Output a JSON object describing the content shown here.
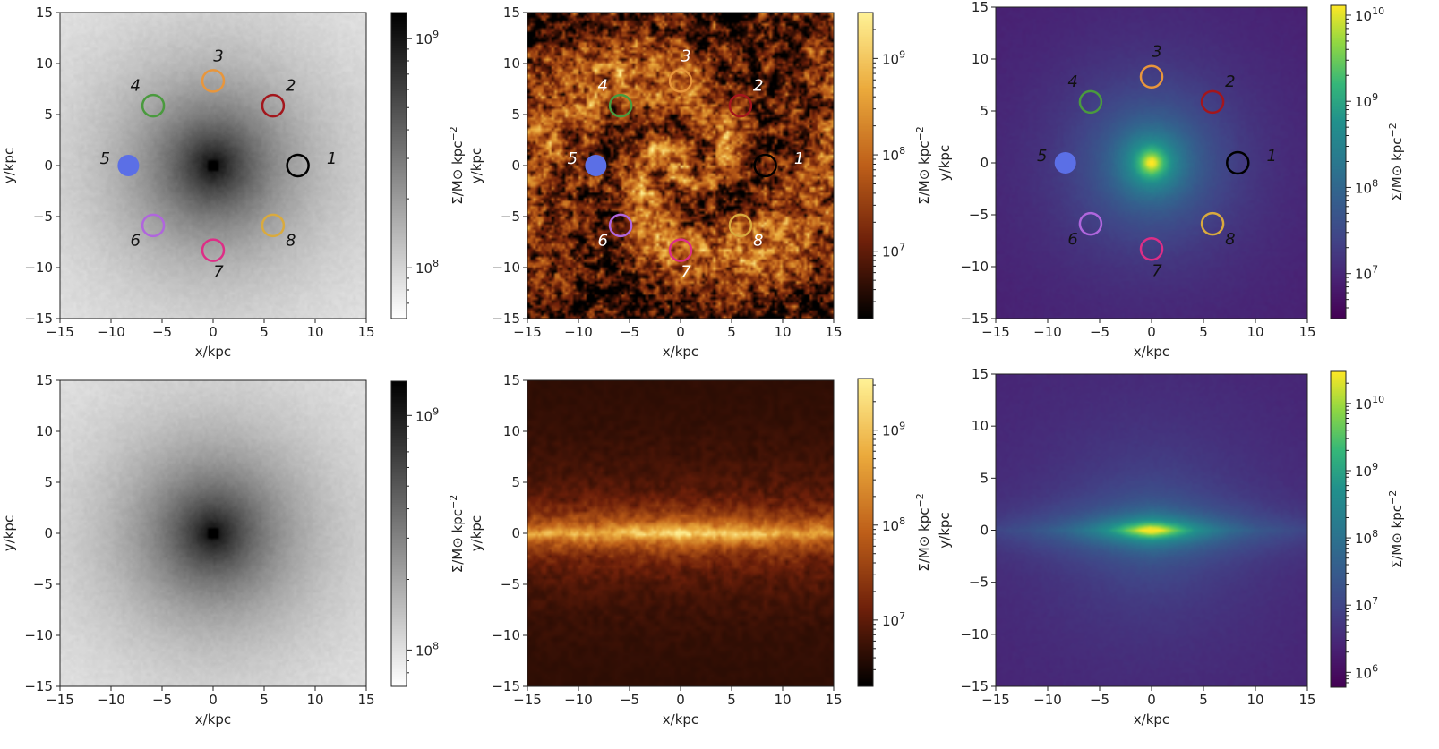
{
  "colors": {
    "dm_colormap": "grey",
    "gas_colormap": "afmhot",
    "star_colormap": "viridis",
    "marker_1": "#000000",
    "marker_2": "#a3161c",
    "marker_3": "#e8963c",
    "marker_4": "#4a9a3e",
    "marker_5": "#5b6fe6",
    "marker_6": "#b066dd",
    "marker_7": "#dd2e86",
    "marker_8": "#d9aa3e"
  },
  "chart_data": [
    {
      "type": "heatmap",
      "id": "dm-face-on",
      "colormap": "grey",
      "x": {
        "label": "x/kpc",
        "lim": [
          -15,
          15
        ],
        "ticks": [
          "−15",
          "−10",
          "−5",
          "0",
          "5",
          "10",
          "15"
        ]
      },
      "y": {
        "label": "y/kpc",
        "lim": [
          -15,
          15
        ],
        "ticks": [
          "−15",
          "−10",
          "−5",
          "0",
          "5",
          "10",
          "15"
        ]
      },
      "colorbar": {
        "label": "Σ/M⊙ kpc⁻²",
        "scale": "log",
        "range": [
          60000000,
          1300000000
        ],
        "ticks": [
          {
            "v": 100000000,
            "base": "10",
            "exp": "8"
          },
          {
            "v": 1000000000,
            "base": "10",
            "exp": "9"
          }
        ]
      },
      "field": {
        "center": [
          0,
          0
        ],
        "scale_kpc": 7,
        "edge_flatten": 0.35,
        "seed": 11
      },
      "markers": [
        {
          "label": "1",
          "x": 8.3,
          "y": 0.0,
          "color": "#000000",
          "filled": false
        },
        {
          "label": "2",
          "x": 5.87,
          "y": 5.87,
          "color": "#a3161c",
          "filled": false
        },
        {
          "label": "3",
          "x": 0.0,
          "y": 8.3,
          "color": "#e8963c",
          "filled": false
        },
        {
          "label": "4",
          "x": -5.87,
          "y": 5.87,
          "color": "#4a9a3e",
          "filled": false
        },
        {
          "label": "5",
          "x": -8.3,
          "y": 0.0,
          "color": "#5b6fe6",
          "filled": true
        },
        {
          "label": "6",
          "x": -5.87,
          "y": -5.87,
          "color": "#b066dd",
          "filled": false
        },
        {
          "label": "7",
          "x": 0.0,
          "y": -8.3,
          "color": "#dd2e86",
          "filled": false
        },
        {
          "label": "8",
          "x": 5.87,
          "y": -5.87,
          "color": "#d9aa3e",
          "filled": false
        }
      ],
      "marker_label_color": "#111111"
    },
    {
      "type": "heatmap",
      "id": "gas-face-on",
      "colormap": "afmhot",
      "x": {
        "label": "x/kpc",
        "lim": [
          -15,
          15
        ],
        "ticks": [
          "−15",
          "−10",
          "−5",
          "0",
          "5",
          "10",
          "15"
        ]
      },
      "y": {
        "label": "y/kpc",
        "lim": [
          -15,
          15
        ],
        "ticks": [
          "−15",
          "−10",
          "−5",
          "0",
          "5",
          "10",
          "15"
        ]
      },
      "colorbar": {
        "label": "Σ/M⊙ kpc⁻²",
        "scale": "log",
        "range": [
          2000000,
          3000000000
        ],
        "ticks": [
          {
            "v": 10000000,
            "base": "10",
            "exp": "7"
          },
          {
            "v": 100000000,
            "base": "10",
            "exp": "8"
          },
          {
            "v": 1000000000,
            "base": "10",
            "exp": "9"
          }
        ]
      },
      "field": {
        "center": [
          0,
          0
        ],
        "spiral": true,
        "seed": 23
      },
      "markers": [
        {
          "label": "1",
          "x": 8.3,
          "y": 0.0,
          "color": "#000000",
          "filled": false
        },
        {
          "label": "2",
          "x": 5.87,
          "y": 5.87,
          "color": "#a3161c",
          "filled": false
        },
        {
          "label": "3",
          "x": 0.0,
          "y": 8.3,
          "color": "#e8963c",
          "filled": false
        },
        {
          "label": "4",
          "x": -5.87,
          "y": 5.87,
          "color": "#4a9a3e",
          "filled": false
        },
        {
          "label": "5",
          "x": -8.3,
          "y": 0.0,
          "color": "#5b6fe6",
          "filled": true
        },
        {
          "label": "6",
          "x": -5.87,
          "y": -5.87,
          "color": "#b066dd",
          "filled": false
        },
        {
          "label": "7",
          "x": 0.0,
          "y": -8.3,
          "color": "#dd2e86",
          "filled": false
        },
        {
          "label": "8",
          "x": 5.87,
          "y": -5.87,
          "color": "#d9aa3e",
          "filled": false
        }
      ],
      "marker_label_color": "#ffffff"
    },
    {
      "type": "heatmap",
      "id": "stars-face-on",
      "colormap": "viridis",
      "x": {
        "label": "x/kpc",
        "lim": [
          -15,
          15
        ],
        "ticks": [
          "−15",
          "−10",
          "−5",
          "0",
          "5",
          "10",
          "15"
        ]
      },
      "y": {
        "label": "y/kpc",
        "lim": [
          -15,
          15
        ],
        "ticks": [
          "−15",
          "−10",
          "−5",
          "0",
          "5",
          "10",
          "15"
        ]
      },
      "colorbar": {
        "label": "Σ/M⊙ kpc⁻²",
        "scale": "log",
        "range": [
          3000000,
          13000000000
        ],
        "ticks": [
          {
            "v": 10000000,
            "base": "10",
            "exp": "7"
          },
          {
            "v": 100000000,
            "base": "10",
            "exp": "8"
          },
          {
            "v": 1000000000,
            "base": "10",
            "exp": "9"
          },
          {
            "v": 10000000000,
            "base": "10",
            "exp": "10"
          }
        ]
      },
      "field": {
        "center": [
          0,
          0
        ],
        "scale_kpc": 4,
        "seed": 37
      },
      "markers": [
        {
          "label": "1",
          "x": 8.3,
          "y": 0.0,
          "color": "#000000",
          "filled": false
        },
        {
          "label": "2",
          "x": 5.87,
          "y": 5.87,
          "color": "#a3161c",
          "filled": false
        },
        {
          "label": "3",
          "x": 0.0,
          "y": 8.3,
          "color": "#e8963c",
          "filled": false
        },
        {
          "label": "4",
          "x": -5.87,
          "y": 5.87,
          "color": "#4a9a3e",
          "filled": false
        },
        {
          "label": "5",
          "x": -8.3,
          "y": 0.0,
          "color": "#5b6fe6",
          "filled": true
        },
        {
          "label": "6",
          "x": -5.87,
          "y": -5.87,
          "color": "#b066dd",
          "filled": false
        },
        {
          "label": "7",
          "x": 0.0,
          "y": -8.3,
          "color": "#dd2e86",
          "filled": false
        },
        {
          "label": "8",
          "x": 5.87,
          "y": -5.87,
          "color": "#d9aa3e",
          "filled": false
        }
      ],
      "marker_label_color": "#111111"
    },
    {
      "type": "heatmap",
      "id": "dm-edge-on",
      "colormap": "grey",
      "x": {
        "label": "x/kpc",
        "lim": [
          -15,
          15
        ],
        "ticks": [
          "−15",
          "−10",
          "−5",
          "0",
          "5",
          "10",
          "15"
        ]
      },
      "y": {
        "label": "y/kpc",
        "lim": [
          -15,
          15
        ],
        "ticks": [
          "−15",
          "−10",
          "−5",
          "0",
          "5",
          "10",
          "15"
        ]
      },
      "colorbar": {
        "label": "Σ/M⊙ kpc⁻²",
        "scale": "log",
        "range": [
          70000000,
          1400000000
        ],
        "ticks": [
          {
            "v": 100000000,
            "base": "10",
            "exp": "8"
          },
          {
            "v": 1000000000,
            "base": "10",
            "exp": "9"
          }
        ]
      },
      "field": {
        "center": [
          0,
          0
        ],
        "scale_kpc": 7,
        "edge_flatten": 0.4,
        "seed": 53
      },
      "markers": []
    },
    {
      "type": "heatmap",
      "id": "gas-edge-on",
      "colormap": "afmhot",
      "x": {
        "label": "x/kpc",
        "lim": [
          -15,
          15
        ],
        "ticks": [
          "−15",
          "−10",
          "−5",
          "0",
          "5",
          "10",
          "15"
        ]
      },
      "y": {
        "label": "y/kpc",
        "lim": [
          -15,
          15
        ],
        "ticks": [
          "−15",
          "−10",
          "−5",
          "0",
          "5",
          "10",
          "15"
        ]
      },
      "colorbar": {
        "label": "Σ/M⊙ kpc⁻²",
        "scale": "log",
        "range": [
          2000000,
          3500000000
        ],
        "ticks": [
          {
            "v": 10000000,
            "base": "10",
            "exp": "7"
          },
          {
            "v": 100000000,
            "base": "10",
            "exp": "8"
          },
          {
            "v": 1000000000,
            "base": "10",
            "exp": "9"
          }
        ]
      },
      "field": {
        "center": [
          0,
          0
        ],
        "disk_height_kpc": 1.2,
        "seed": 71
      },
      "markers": []
    },
    {
      "type": "heatmap",
      "id": "stars-edge-on",
      "colormap": "viridis",
      "x": {
        "label": "x/kpc",
        "lim": [
          -15,
          15
        ],
        "ticks": [
          "−15",
          "−10",
          "−5",
          "0",
          "5",
          "10",
          "15"
        ]
      },
      "y": {
        "label": "y/kpc",
        "lim": [
          -15,
          15
        ],
        "ticks": [
          "−15",
          "−10",
          "−5",
          "0",
          "5",
          "10",
          "15"
        ]
      },
      "colorbar": {
        "label": "Σ/M⊙ kpc⁻²",
        "scale": "log",
        "range": [
          600000,
          30000000000
        ],
        "ticks": [
          {
            "v": 1000000,
            "base": "10",
            "exp": "6"
          },
          {
            "v": 10000000,
            "base": "10",
            "exp": "7"
          },
          {
            "v": 100000000,
            "base": "10",
            "exp": "8"
          },
          {
            "v": 1000000000,
            "base": "10",
            "exp": "9"
          },
          {
            "v": 10000000000,
            "base": "10",
            "exp": "10"
          }
        ]
      },
      "field": {
        "center": [
          0,
          0
        ],
        "scale_kpc": 4,
        "disk_height_kpc": 1.0,
        "seed": 97
      },
      "markers": []
    }
  ]
}
